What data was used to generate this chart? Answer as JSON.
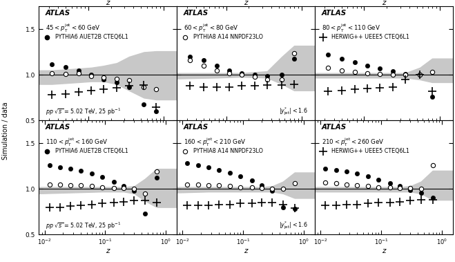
{
  "panels": [
    {
      "pt_label": "$45 < p_{\\mathrm{T}}^{\\mathrm{jet}} < 60$ GeV",
      "legend_marker": "filled_circle",
      "legend_text": "PYTHIA6 AUET2B CTEQ6L1",
      "bottom_left_text": "$pp$ $\\sqrt{s}$ = 5.02 TeV, 25 pb$^{-1}$",
      "xmin": 0.022,
      "xmax": 1.5,
      "row": 0,
      "col": 0
    },
    {
      "pt_label": "$60 < p_{\\mathrm{T}}^{\\mathrm{jet}} < 80$ GeV",
      "legend_marker": "open_circle",
      "legend_text": "PYTHIA8 A14 NNPDF23LO",
      "bottom_right_text": "$|y^{*}_{\\mathrm{jet}}| < 1.6$",
      "xmin": 0.022,
      "xmax": 1.5,
      "row": 0,
      "col": 1
    },
    {
      "pt_label": "$80 < p_{\\mathrm{T}}^{\\mathrm{jet}} < 110$ GeV",
      "legend_marker": "cross",
      "legend_text": "HERWIG++ UEEE5 CTEQ6L1",
      "xmin": 0.022,
      "xmax": 1.5,
      "row": 0,
      "col": 2
    },
    {
      "pt_label": "$110 < p_{\\mathrm{T}}^{\\mathrm{jet}} < 160$ GeV",
      "legend_marker": "filled_circle",
      "legend_text": "PYTHIA6 AUET2B CTEQ6L1",
      "bottom_left_text": "$pp$ $\\sqrt{s}$ = 5.02 TeV, 25 pb$^{-1}$",
      "xmin": 0.008,
      "xmax": 1.5,
      "row": 1,
      "col": 0
    },
    {
      "pt_label": "$160 < p_{\\mathrm{T}}^{\\mathrm{jet}} < 210$ GeV",
      "legend_marker": "open_circle",
      "legend_text": "PYTHIA8 A14 NNPDF23LO",
      "bottom_right_text": "$|y^{*}_{\\mathrm{jet}}| < 1.6$",
      "xmin": 0.008,
      "xmax": 1.5,
      "row": 1,
      "col": 1
    },
    {
      "pt_label": "$210 < p_{\\mathrm{T}}^{\\mathrm{jet}} < 260$ GeV",
      "legend_marker": "cross",
      "legend_text": "HERWIG++ UEEE5 CTEQ6L1",
      "xmin": 0.008,
      "xmax": 1.5,
      "row": 1,
      "col": 2
    }
  ],
  "panel_data": [
    {
      "z_pythia6": [
        0.033,
        0.05,
        0.075,
        0.11,
        0.16,
        0.24,
        0.35,
        0.55,
        0.8
      ],
      "r_pythia6": [
        1.12,
        1.09,
        1.05,
        1.0,
        0.95,
        0.92,
        0.87,
        0.68,
        0.6
      ],
      "z_pythia8": [
        0.033,
        0.05,
        0.075,
        0.11,
        0.16,
        0.24,
        0.35,
        0.55,
        0.8
      ],
      "r_pythia8": [
        1.02,
        1.01,
        1.02,
        0.99,
        0.97,
        0.96,
        0.94,
        0.87,
        0.84
      ],
      "z_herwig": [
        0.033,
        0.05,
        0.075,
        0.11,
        0.16,
        0.24,
        0.35,
        0.55,
        0.8
      ],
      "r_herwig": [
        0.78,
        0.79,
        0.81,
        0.83,
        0.84,
        0.86,
        0.88,
        0.89,
        0.65
      ],
      "z_band": [
        0.022,
        0.033,
        0.05,
        0.075,
        0.11,
        0.16,
        0.24,
        0.35,
        0.55,
        0.8,
        1.5
      ],
      "band_lo": [
        0.9,
        0.9,
        0.91,
        0.92,
        0.93,
        0.93,
        0.9,
        0.83,
        0.75,
        0.73,
        0.73
      ],
      "band_hi": [
        1.05,
        1.05,
        1.06,
        1.07,
        1.08,
        1.1,
        1.13,
        1.2,
        1.25,
        1.26,
        1.26
      ]
    },
    {
      "z_pythia6": [
        0.033,
        0.05,
        0.075,
        0.11,
        0.16,
        0.24,
        0.35,
        0.55,
        0.8
      ],
      "r_pythia6": [
        1.2,
        1.16,
        1.1,
        1.05,
        1.02,
        1.0,
        0.99,
        1.0,
        1.18
      ],
      "z_pythia8": [
        0.033,
        0.05,
        0.075,
        0.11,
        0.16,
        0.24,
        0.35,
        0.55,
        0.8
      ],
      "r_pythia8": [
        1.16,
        1.1,
        1.05,
        1.02,
        1.0,
        0.98,
        0.95,
        0.95,
        1.24
      ],
      "z_herwig": [
        0.033,
        0.05,
        0.075,
        0.11,
        0.16,
        0.24,
        0.35,
        0.55,
        0.8
      ],
      "r_herwig": [
        0.88,
        0.87,
        0.87,
        0.87,
        0.88,
        0.88,
        0.89,
        0.89,
        0.9
      ],
      "z_band": [
        0.022,
        0.075,
        0.16,
        0.35,
        0.55,
        0.8,
        1.5
      ],
      "band_lo": [
        0.96,
        0.97,
        0.98,
        0.97,
        0.9,
        0.83,
        0.83
      ],
      "band_hi": [
        1.02,
        1.02,
        1.02,
        1.04,
        1.2,
        1.32,
        1.32
      ]
    },
    {
      "z_pythia6": [
        0.033,
        0.05,
        0.075,
        0.11,
        0.16,
        0.24,
        0.35,
        0.55,
        0.8
      ],
      "r_pythia6": [
        1.22,
        1.18,
        1.14,
        1.1,
        1.07,
        1.04,
        1.01,
        1.0,
        0.76
      ],
      "z_pythia8": [
        0.033,
        0.05,
        0.075,
        0.11,
        0.16,
        0.24,
        0.35,
        0.55,
        0.8
      ],
      "r_pythia8": [
        1.08,
        1.05,
        1.03,
        1.02,
        1.01,
        1.0,
        1.0,
        1.0,
        1.03
      ],
      "z_herwig": [
        0.033,
        0.05,
        0.075,
        0.11,
        0.16,
        0.24,
        0.35,
        0.55,
        0.8
      ],
      "r_herwig": [
        0.82,
        0.83,
        0.84,
        0.85,
        0.86,
        0.87,
        0.95,
        1.0,
        0.82
      ],
      "z_band": [
        0.022,
        0.075,
        0.16,
        0.35,
        0.55,
        0.8,
        1.5
      ],
      "band_lo": [
        0.97,
        0.97,
        0.97,
        0.97,
        0.95,
        0.92,
        0.92
      ],
      "band_hi": [
        1.02,
        1.02,
        1.02,
        1.02,
        1.08,
        1.18,
        1.18
      ]
    },
    {
      "z_pythia6": [
        0.012,
        0.018,
        0.027,
        0.04,
        0.06,
        0.09,
        0.14,
        0.2,
        0.3,
        0.45,
        0.7
      ],
      "r_pythia6": [
        1.26,
        1.24,
        1.22,
        1.2,
        1.17,
        1.13,
        1.08,
        1.03,
        0.98,
        0.73,
        1.12
      ],
      "z_pythia8": [
        0.012,
        0.018,
        0.027,
        0.04,
        0.06,
        0.09,
        0.14,
        0.2,
        0.3,
        0.45,
        0.7
      ],
      "r_pythia8": [
        1.05,
        1.05,
        1.04,
        1.04,
        1.03,
        1.02,
        1.01,
        1.01,
        1.0,
        0.95,
        1.19
      ],
      "z_herwig": [
        0.012,
        0.018,
        0.027,
        0.04,
        0.06,
        0.09,
        0.14,
        0.2,
        0.3,
        0.45,
        0.7
      ],
      "r_herwig": [
        0.8,
        0.8,
        0.81,
        0.82,
        0.83,
        0.84,
        0.85,
        0.86,
        0.87,
        0.87,
        0.85
      ],
      "z_band": [
        0.008,
        0.027,
        0.09,
        0.2,
        0.3,
        0.45,
        0.7,
        1.5
      ],
      "band_lo": [
        0.95,
        0.96,
        0.97,
        0.97,
        0.95,
        0.87,
        0.8,
        0.8
      ],
      "band_hi": [
        1.02,
        1.02,
        1.02,
        1.02,
        1.03,
        1.11,
        1.22,
        1.22
      ]
    },
    {
      "z_pythia6": [
        0.012,
        0.018,
        0.027,
        0.04,
        0.06,
        0.09,
        0.14,
        0.2,
        0.3,
        0.45,
        0.7
      ],
      "r_pythia6": [
        1.28,
        1.26,
        1.24,
        1.21,
        1.18,
        1.14,
        1.09,
        1.04,
        0.98,
        0.8,
        0.78
      ],
      "z_pythia8": [
        0.012,
        0.018,
        0.027,
        0.04,
        0.06,
        0.09,
        0.14,
        0.2,
        0.3,
        0.45,
        0.7
      ],
      "r_pythia8": [
        1.05,
        1.05,
        1.04,
        1.04,
        1.03,
        1.02,
        1.02,
        1.01,
        1.0,
        1.0,
        1.06
      ],
      "z_herwig": [
        0.012,
        0.018,
        0.027,
        0.04,
        0.06,
        0.09,
        0.14,
        0.2,
        0.3,
        0.45,
        0.7
      ],
      "r_herwig": [
        0.82,
        0.82,
        0.82,
        0.83,
        0.83,
        0.84,
        0.84,
        0.85,
        0.85,
        0.83,
        0.79
      ],
      "z_band": [
        0.008,
        0.027,
        0.09,
        0.2,
        0.3,
        0.45,
        0.7,
        1.5
      ],
      "band_lo": [
        0.96,
        0.97,
        0.97,
        0.97,
        0.97,
        0.95,
        0.9,
        0.9
      ],
      "band_hi": [
        1.02,
        1.02,
        1.02,
        1.02,
        1.03,
        1.08,
        1.18,
        1.18
      ]
    },
    {
      "z_pythia6": [
        0.012,
        0.018,
        0.027,
        0.04,
        0.06,
        0.09,
        0.14,
        0.2,
        0.3,
        0.45,
        0.7
      ],
      "r_pythia6": [
        1.22,
        1.21,
        1.19,
        1.17,
        1.14,
        1.1,
        1.06,
        1.03,
        0.99,
        0.96,
        0.9
      ],
      "z_pythia8": [
        0.012,
        0.018,
        0.027,
        0.04,
        0.06,
        0.09,
        0.14,
        0.2,
        0.3,
        0.45,
        0.7
      ],
      "r_pythia8": [
        1.07,
        1.06,
        1.05,
        1.04,
        1.03,
        1.02,
        1.02,
        1.01,
        1.01,
        1.0,
        1.26
      ],
      "z_herwig": [
        0.012,
        0.018,
        0.027,
        0.04,
        0.06,
        0.09,
        0.14,
        0.2,
        0.3,
        0.45,
        0.7
      ],
      "r_herwig": [
        0.82,
        0.82,
        0.83,
        0.83,
        0.84,
        0.85,
        0.85,
        0.86,
        0.87,
        0.88,
        0.88
      ],
      "z_band": [
        0.008,
        0.027,
        0.09,
        0.2,
        0.3,
        0.45,
        0.7,
        1.5
      ],
      "band_lo": [
        0.97,
        0.97,
        0.97,
        0.97,
        0.97,
        0.95,
        0.88,
        0.88
      ],
      "band_hi": [
        1.02,
        1.02,
        1.02,
        1.02,
        1.03,
        1.08,
        1.2,
        1.2
      ]
    }
  ],
  "ylim": [
    0.5,
    1.75
  ],
  "yticks": [
    0.5,
    1.0,
    1.5
  ],
  "band_color": "#c8c8c8",
  "marker_size": 4.5,
  "cross_size": 8,
  "ylabel": "Simulation / data",
  "xlabel": "z"
}
